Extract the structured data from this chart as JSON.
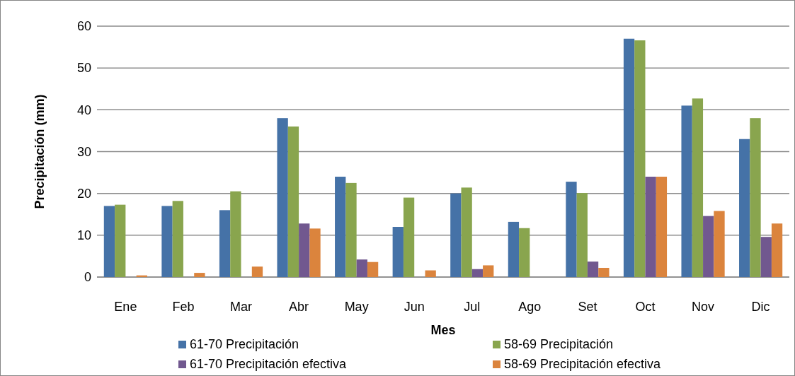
{
  "chart_data": {
    "type": "bar",
    "xlabel": "Mes",
    "ylabel": "Precipitación (mm)",
    "categories": [
      "Ene",
      "Feb",
      "Mar",
      "Abr",
      "May",
      "Jun",
      "Jul",
      "Ago",
      "Set",
      "Oct",
      "Nov",
      "Dic"
    ],
    "series": [
      {
        "name": "61-70 Precipitación",
        "color": "#4572a7",
        "values": [
          17,
          17,
          16,
          38,
          24,
          12,
          20,
          13.2,
          22.8,
          57,
          41,
          33
        ]
      },
      {
        "name": "58-69 Precipitación",
        "color": "#89a54e",
        "values": [
          17.3,
          18.2,
          20.5,
          36,
          22.5,
          19,
          21.4,
          11.7,
          20.1,
          56.6,
          42.7,
          38
        ]
      },
      {
        "name": "61-70 Precipitación efectiva",
        "color": "#71588f",
        "values": [
          0,
          0,
          0,
          12.8,
          4.2,
          0,
          1.9,
          0,
          3.7,
          24,
          14.6,
          9.6
        ]
      },
      {
        "name": "58-69 Precipitación efectiva",
        "color": "#db843d",
        "values": [
          0.4,
          1,
          2.5,
          11.6,
          3.6,
          1.6,
          2.8,
          0,
          2.2,
          24,
          15.8,
          12.8
        ]
      }
    ],
    "ylim": [
      0,
      60
    ],
    "yticks": [
      0,
      10,
      20,
      30,
      40,
      50,
      60
    ],
    "grid": "y",
    "legend": "bottom"
  }
}
